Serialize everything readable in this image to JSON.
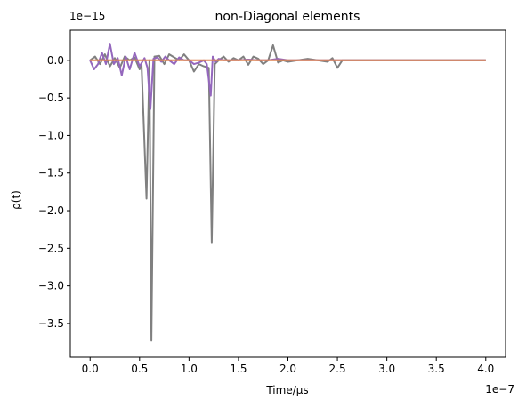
{
  "chart_data": {
    "type": "line",
    "title": "non-Diagonal elements",
    "xlabel": "Time/μs",
    "ylabel": "ρ(t)",
    "x_offset_text": "1e−7",
    "y_offset_text": "1e−15",
    "x_scale": 1e-07,
    "y_scale": 1e-15,
    "xlim": [
      -0.2,
      4.2
    ],
    "ylim": [
      -3.95,
      0.4
    ],
    "xticks": [
      0.0,
      0.5,
      1.0,
      1.5,
      2.0,
      2.5,
      3.0,
      3.5,
      4.0
    ],
    "xtick_labels": [
      "0.0",
      "0.5",
      "1.0",
      "1.5",
      "2.0",
      "2.5",
      "3.0",
      "3.5",
      "4.0"
    ],
    "yticks": [
      0.0,
      -0.5,
      -1.0,
      -1.5,
      -2.0,
      -2.5,
      -3.0,
      -3.5
    ],
    "ytick_labels": [
      "0.0",
      "−0.5",
      "−1.0",
      "−1.5",
      "−2.0",
      "−2.5",
      "−3.0",
      "−3.5"
    ],
    "grid": false,
    "series": [
      {
        "color": "#808080",
        "x": [
          0.0,
          0.05,
          0.1,
          0.15,
          0.2,
          0.25,
          0.3,
          0.35,
          0.4,
          0.45,
          0.5,
          0.52,
          0.57,
          0.6,
          0.62,
          0.65,
          0.7,
          0.75,
          0.8,
          0.85,
          0.9,
          0.95,
          1.0,
          1.05,
          1.1,
          1.15,
          1.2,
          1.23,
          1.26,
          1.3,
          1.35,
          1.4,
          1.45,
          1.5,
          1.55,
          1.6,
          1.65,
          1.7,
          1.75,
          1.8,
          1.85,
          1.9,
          1.95,
          2.0,
          2.1,
          2.2,
          2.3,
          2.4,
          2.45,
          2.5,
          2.55,
          2.6,
          2.7,
          2.8,
          2.9,
          3.0,
          3.2,
          3.4,
          3.6,
          3.8,
          4.0
        ],
        "y": [
          0.0,
          0.05,
          -0.05,
          0.08,
          -0.08,
          0.03,
          -0.1,
          0.05,
          0.0,
          0.04,
          -0.12,
          -0.05,
          -1.84,
          0.0,
          -3.73,
          0.05,
          0.06,
          -0.05,
          0.08,
          0.04,
          0.0,
          0.08,
          0.0,
          -0.15,
          -0.05,
          -0.08,
          -0.1,
          -2.42,
          -0.05,
          0.0,
          0.05,
          -0.02,
          0.03,
          0.0,
          0.05,
          -0.06,
          0.05,
          0.02,
          -0.05,
          0.0,
          0.2,
          -0.03,
          0.0,
          -0.02,
          0.0,
          0.02,
          0.0,
          -0.02,
          0.03,
          -0.1,
          0.0,
          0.0,
          0.0,
          0.0,
          0.0,
          0.0,
          0.0,
          0.0,
          0.0,
          0.0,
          0.0
        ]
      },
      {
        "color": "#9467bd",
        "x": [
          0.0,
          0.04,
          0.08,
          0.12,
          0.16,
          0.2,
          0.24,
          0.28,
          0.32,
          0.36,
          0.4,
          0.45,
          0.5,
          0.55,
          0.58,
          0.61,
          0.64,
          0.68,
          0.72,
          0.76,
          0.8,
          0.85,
          0.9,
          0.95,
          1.0,
          1.05,
          1.1,
          1.15,
          1.18,
          1.22,
          1.24,
          1.27,
          1.3,
          1.35,
          1.4,
          1.5,
          1.6,
          1.7,
          1.8,
          1.9,
          2.0,
          2.2,
          2.4,
          2.6,
          2.8,
          3.0,
          3.2,
          3.4,
          3.6,
          3.8,
          4.0
        ],
        "y": [
          0.0,
          -0.12,
          -0.05,
          0.1,
          -0.05,
          0.22,
          -0.05,
          0.03,
          -0.2,
          0.05,
          -0.12,
          0.1,
          -0.08,
          0.03,
          -0.1,
          -0.65,
          0.02,
          0.04,
          -0.02,
          0.05,
          0.0,
          -0.05,
          0.04,
          0.0,
          0.0,
          -0.05,
          -0.03,
          0.0,
          -0.05,
          -0.47,
          0.05,
          -0.02,
          0.02,
          0.0,
          0.0,
          0.0,
          0.01,
          0.0,
          0.0,
          0.02,
          0.0,
          0.0,
          0.0,
          0.0,
          0.0,
          0.0,
          0.0,
          0.0,
          0.0,
          0.0,
          0.0
        ]
      },
      {
        "color": "#dd8452",
        "x": [
          0.0,
          0.5,
          1.0,
          1.5,
          2.0,
          2.5,
          3.0,
          3.5,
          4.0
        ],
        "y": [
          0.0,
          0.0,
          0.0,
          0.0,
          0.0,
          0.0,
          0.0,
          0.0,
          0.0
        ]
      }
    ]
  }
}
